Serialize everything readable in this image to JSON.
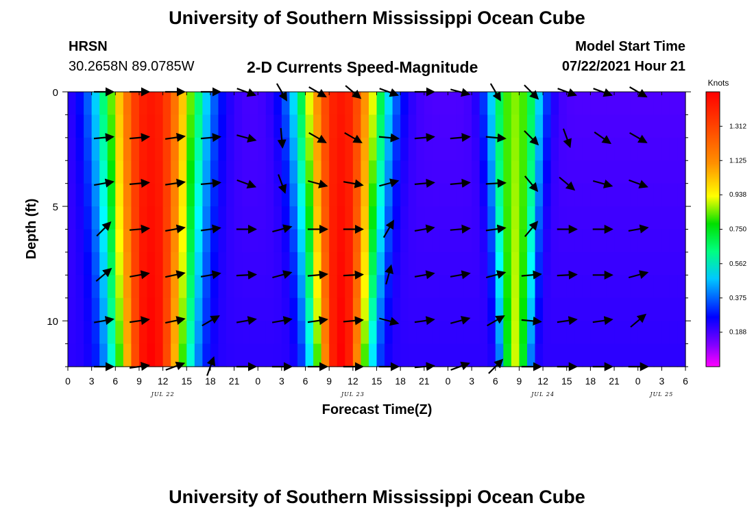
{
  "header": {
    "title_top": "University of Southern Mississippi Ocean Cube",
    "station": "HRSN",
    "coordinates": "30.2658N  89.0785W",
    "chart_title": "2-D Currents Speed-Magnitude",
    "model_label": "Model Start Time",
    "model_time": "07/22/2021 Hour 21",
    "title_bottom": "University of Southern Mississippi Ocean Cube"
  },
  "chart_data": {
    "type": "heatmap",
    "title": "2-D Currents Speed-Magnitude",
    "xlabel": "Forecast Time(Z)",
    "ylabel": "Depth (ft)",
    "x_range_hours": [
      0,
      78
    ],
    "x_start": "07/22/2021 Hour 00Z",
    "y_range_ft": [
      0,
      12
    ],
    "x_tick_labels": [
      "0",
      "3",
      "6",
      "9",
      "12",
      "15",
      "18",
      "21",
      "0",
      "3",
      "6",
      "9",
      "12",
      "15",
      "18",
      "21",
      "0",
      "3",
      "6",
      "9",
      "12",
      "15",
      "18",
      "21",
      "0",
      "3",
      "6"
    ],
    "y_ticks": [
      0,
      5,
      10
    ],
    "date_labels": [
      {
        "hour": 12,
        "label": "JUL 22"
      },
      {
        "hour": 36,
        "label": "JUL 23"
      },
      {
        "hour": 60,
        "label": "JUL 24"
      },
      {
        "hour": 75,
        "label": "JUL 25"
      }
    ],
    "colorbar": {
      "unit": "Knots",
      "min": 0.0,
      "max": 1.5,
      "ticks": [
        "0.188",
        "0.375",
        "0.562",
        "0.750",
        "0.938",
        "1.125",
        "1.312"
      ],
      "tick_values": [
        0.188,
        0.375,
        0.562,
        0.75,
        0.938,
        1.125,
        1.312
      ]
    },
    "depths_ft": [
      0,
      2,
      4,
      6,
      8,
      10,
      12
    ],
    "peak_events": [
      {
        "center_hour": 10.5,
        "half_width_surface_hours": 5.5,
        "half_width_bottom_hours": 4,
        "peak_knots": 1.45
      },
      {
        "center_hour": 34.5,
        "half_width_surface_hours": 4.8,
        "half_width_bottom_hours": 3,
        "peak_knots": 1.45
      },
      {
        "center_hour": 56.5,
        "half_width_surface_hours": 3.0,
        "half_width_bottom_hours": 1.5,
        "peak_knots": 0.9
      }
    ],
    "arrow_hours": [
      4.5,
      9,
      13.5,
      18,
      22.5,
      27,
      31.5,
      36,
      40.5,
      45,
      49.5,
      54,
      58.5,
      63,
      67.5,
      72
    ],
    "arrow_directions_deg": [
      [
        0,
        0,
        0,
        0,
        -20,
        -60,
        -30,
        -40,
        -20,
        0,
        -15,
        -60,
        -45,
        -20,
        -20,
        -30
      ],
      [
        5,
        5,
        8,
        5,
        -15,
        -85,
        -30,
        -30,
        -5,
        5,
        5,
        -5,
        -45,
        -70,
        -35,
        -30
      ],
      [
        10,
        5,
        8,
        5,
        -20,
        -70,
        -15,
        -10,
        15,
        5,
        5,
        3,
        -50,
        -40,
        -15,
        -20
      ],
      [
        45,
        5,
        10,
        8,
        0,
        15,
        0,
        0,
        60,
        10,
        5,
        8,
        50,
        0,
        0,
        10
      ],
      [
        40,
        10,
        12,
        10,
        3,
        15,
        5,
        3,
        75,
        10,
        10,
        15,
        5,
        3,
        0,
        15
      ],
      [
        10,
        8,
        12,
        30,
        10,
        10,
        8,
        5,
        -15,
        8,
        15,
        30,
        -5,
        8,
        8,
        40
      ],
      [
        0,
        8,
        20,
        70,
        0,
        0,
        0,
        0,
        0,
        5,
        20,
        45,
        0,
        0,
        0,
        0
      ]
    ]
  }
}
